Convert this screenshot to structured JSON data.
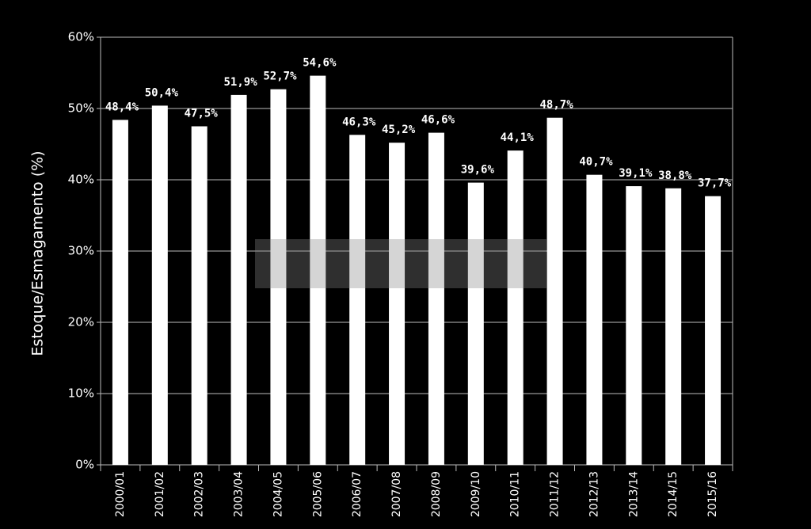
{
  "chart_data": {
    "type": "bar",
    "y_label": "Estoque/Esmagamento  (%)",
    "categories": [
      "2000/01",
      "2001/02",
      "2002/03",
      "2003/04",
      "2004/05",
      "2005/06",
      "2006/07",
      "2007/08",
      "2008/09",
      "2009/10",
      "2010/11",
      "2011/12",
      "2012/13",
      "2013/14",
      "2014/15",
      "2015/16"
    ],
    "values": [
      48.4,
      50.4,
      47.5,
      51.9,
      52.7,
      54.6,
      46.3,
      45.2,
      46.6,
      39.6,
      44.1,
      48.7,
      40.7,
      39.1,
      38.8,
      37.7
    ],
    "value_labels": [
      "48,4%",
      "50,4%",
      "47,5%",
      "51,9%",
      "52,7%",
      "54,6%",
      "46,3%",
      "45,2%",
      "46,6%",
      "39,6%",
      "44,1%",
      "48,7%",
      "40,7%",
      "39,1%",
      "38,8%",
      "37,7%"
    ],
    "color": "#ffffff",
    "ylim": [
      0,
      60
    ],
    "yticks": [
      {
        "value": 0,
        "label": "0%"
      },
      {
        "value": 10,
        "label": "10%"
      },
      {
        "value": 20,
        "label": "20%"
      },
      {
        "value": 30,
        "label": "30%"
      },
      {
        "value": 40,
        "label": "40%"
      },
      {
        "value": 50,
        "label": "50%"
      },
      {
        "value": 60,
        "label": "60%"
      }
    ],
    "grid": true
  }
}
